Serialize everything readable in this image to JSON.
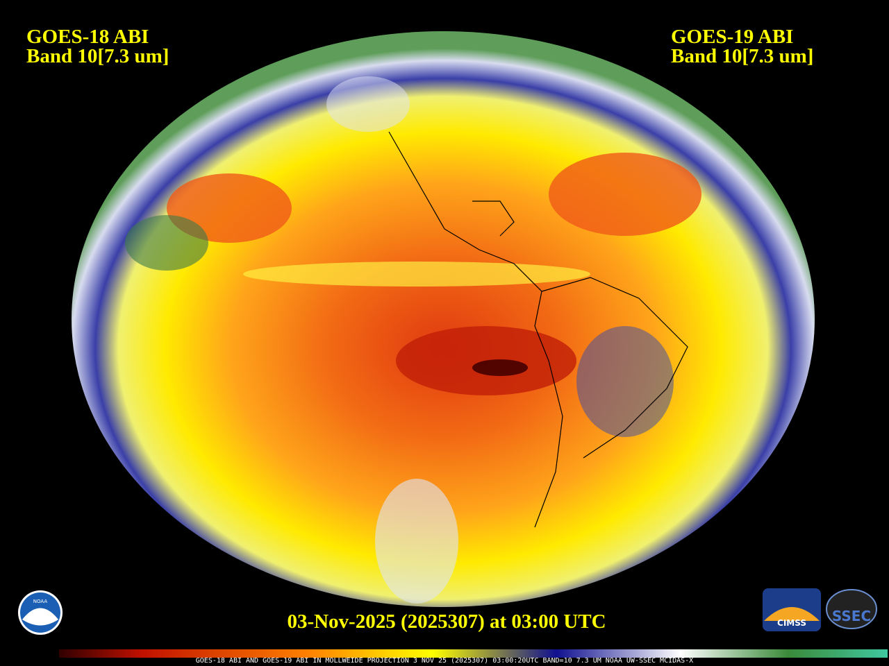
{
  "header": {
    "left": {
      "line1": "GOES-18 ABI",
      "line2": "Band 10[7.3 um]"
    },
    "right": {
      "line1": "GOES-19 ABI",
      "line2": "Band 10[7.3 um]"
    }
  },
  "timestamp": "03-Nov-2025 (2025307) at 03:00 UTC",
  "caption": "GOES-18 ABI AND GOES-19 ABI IN MOLLWEIDE PROJECTION 3 NOV 25 (2025307) 03:00:20UTC BAND=10 7.3 UM NOAA UW-SSEC MCIDAS-X",
  "logos": {
    "noaa": "NOAA",
    "cimss": "CIMSS",
    "ssec": "SSEC"
  }
}
